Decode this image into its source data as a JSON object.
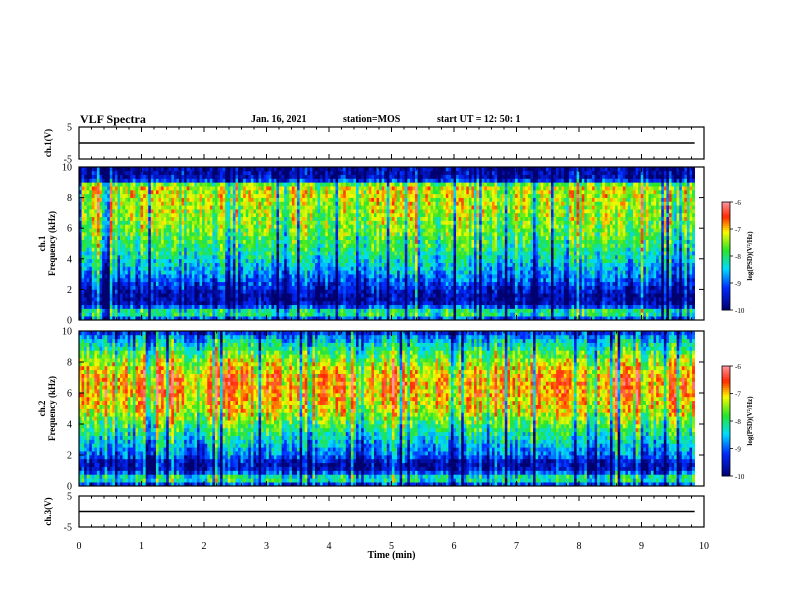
{
  "header": {
    "title": "VLF Spectra",
    "date": "Jan. 16, 2021",
    "station": "station=MOS",
    "start": "start  UT =   12: 50: 1"
  },
  "chart_data": [
    {
      "type": "line",
      "panel": "ch1-waveform",
      "ylabel": "ch.1(V)",
      "ylim": [
        -5,
        5
      ],
      "yticks": [
        "5",
        "-5"
      ],
      "x": [
        0,
        9.85
      ],
      "values": [
        0,
        0
      ],
      "color": "#000000"
    },
    {
      "type": "heatmap",
      "panel": "ch1-spectrogram",
      "ylabel": "ch.1\nFrequency (kHz)",
      "xlim": [
        0,
        10
      ],
      "ylim": [
        0,
        10
      ],
      "yticks": [
        "0",
        "2",
        "4",
        "6",
        "8",
        "10"
      ],
      "x_extent_min": 9.85,
      "colorbar": {
        "label": "log(PSD)(V²/Hz)",
        "range": [
          -10,
          -6
        ],
        "ticks": [
          "-6",
          "-7",
          "-8",
          "-9",
          "-10"
        ]
      },
      "freq_profile_khz": [
        0,
        0.5,
        1,
        1.5,
        2,
        3,
        4,
        5,
        6,
        7,
        8,
        8.8,
        9.2,
        10
      ],
      "freq_profile_log_psd": [
        -9.4,
        -7.6,
        -9.6,
        -9.8,
        -9.5,
        -8.8,
        -8.3,
        -7.9,
        -7.6,
        -7.4,
        -7.3,
        -7.2,
        -9.6,
        -9.8
      ]
    },
    {
      "type": "heatmap",
      "panel": "ch2-spectrogram",
      "ylabel": "ch.2\nFrequency (kHz)",
      "xlim": [
        0,
        10
      ],
      "ylim": [
        0,
        10
      ],
      "yticks": [
        "0",
        "2",
        "4",
        "6",
        "8",
        "10"
      ],
      "x_extent_min": 9.85,
      "colorbar": {
        "label": "log(PSD)(V²/Hz)",
        "range": [
          -10,
          -6
        ],
        "ticks": [
          "-6",
          "-7",
          "-8",
          "-9",
          "-10"
        ]
      },
      "freq_profile_khz": [
        0,
        0.5,
        1,
        1.5,
        2,
        3,
        4,
        5,
        6,
        7,
        8,
        8.8,
        9.5,
        10
      ],
      "freq_profile_log_psd": [
        -9.6,
        -7.8,
        -9.6,
        -9.7,
        -9.0,
        -8.4,
        -7.8,
        -7.2,
        -6.9,
        -6.9,
        -7.4,
        -8.0,
        -8.6,
        -9.5
      ]
    },
    {
      "type": "line",
      "panel": "ch3-waveform",
      "ylabel": "ch.3(V)",
      "ylim": [
        -5,
        5
      ],
      "yticks": [
        "5",
        "-5"
      ],
      "x": [
        0,
        9.85
      ],
      "values": [
        0,
        0
      ],
      "color": "#000000",
      "xlabel": "Time (min)",
      "xlim": [
        0,
        10
      ],
      "xticks": [
        "0",
        "1",
        "2",
        "3",
        "4",
        "5",
        "6",
        "7",
        "8",
        "9",
        "10"
      ]
    }
  ],
  "colors": {
    "axis": "#000000",
    "background": "#ffffff"
  }
}
